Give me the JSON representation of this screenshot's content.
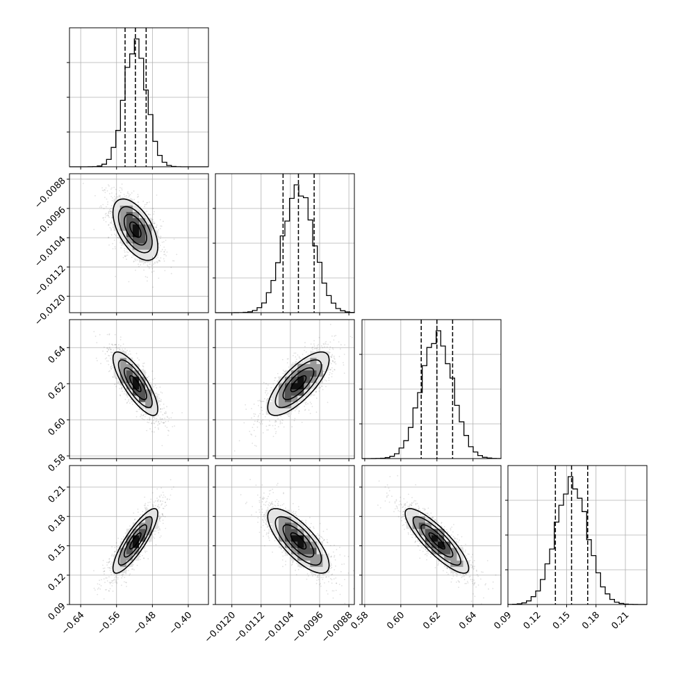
{
  "chart_data": {
    "type": "corner",
    "parameters": [
      {
        "ticks": [
          -0.64,
          -0.56,
          -0.48,
          -0.4
        ],
        "tick_labels": [
          "−0.64",
          "−0.56",
          "−0.48",
          "−0.40"
        ],
        "range": [
          -0.665,
          -0.355
        ],
        "mean": -0.518,
        "sd": 0.025,
        "quantiles": [
          -0.541,
          -0.518,
          -0.494
        ]
      },
      {
        "ticks": [
          -0.012,
          -0.0112,
          -0.0104,
          -0.0096,
          -0.0088
        ],
        "tick_labels": [
          "−0.0120",
          "−0.0112",
          "−0.0104",
          "−0.0096",
          "−0.0088"
        ],
        "range": [
          -0.01245,
          -0.00865
        ],
        "mean": -0.01018,
        "sd": 0.00042,
        "quantiles": [
          -0.0106,
          -0.01018,
          -0.00975
        ]
      },
      {
        "ticks": [
          0.58,
          0.6,
          0.62,
          0.64
        ],
        "tick_labels": [
          "0.58",
          "0.60",
          "0.62",
          "0.64"
        ],
        "range": [
          0.5785,
          0.6555
        ],
        "mean": 0.62,
        "sd": 0.0088,
        "quantiles": [
          0.6113,
          0.62,
          0.6287
        ]
      },
      {
        "ticks": [
          0.09,
          0.12,
          0.15,
          0.18,
          0.21
        ],
        "tick_labels": [
          "0.09",
          "0.12",
          "0.15",
          "0.18",
          "0.21"
        ],
        "range": [
          0.09,
          0.232
        ],
        "mean": 0.155,
        "sd": 0.0165,
        "quantiles": [
          0.1385,
          0.155,
          0.1715
        ]
      }
    ],
    "x_tick_labels_bottom_row": [
      "0.58",
      "0.60",
      "0.62",
      "0.64"
    ],
    "x_tick_labels_overlap": [
      "−0.0088",
      "0.58"
    ],
    "correlations": {
      "0-1": -0.55,
      "0-2": -0.8,
      "1-2": 0.75,
      "0-3": 0.85,
      "1-3": -0.75,
      "2-3": -0.85
    },
    "contour_levels_sigma": [
      0.5,
      1.0,
      1.5,
      2.0
    ],
    "histogram_bins": 30,
    "grid": true
  },
  "colors": {
    "ink": "#000000",
    "grid": "#b0b0b0",
    "scatter": "#555555"
  }
}
